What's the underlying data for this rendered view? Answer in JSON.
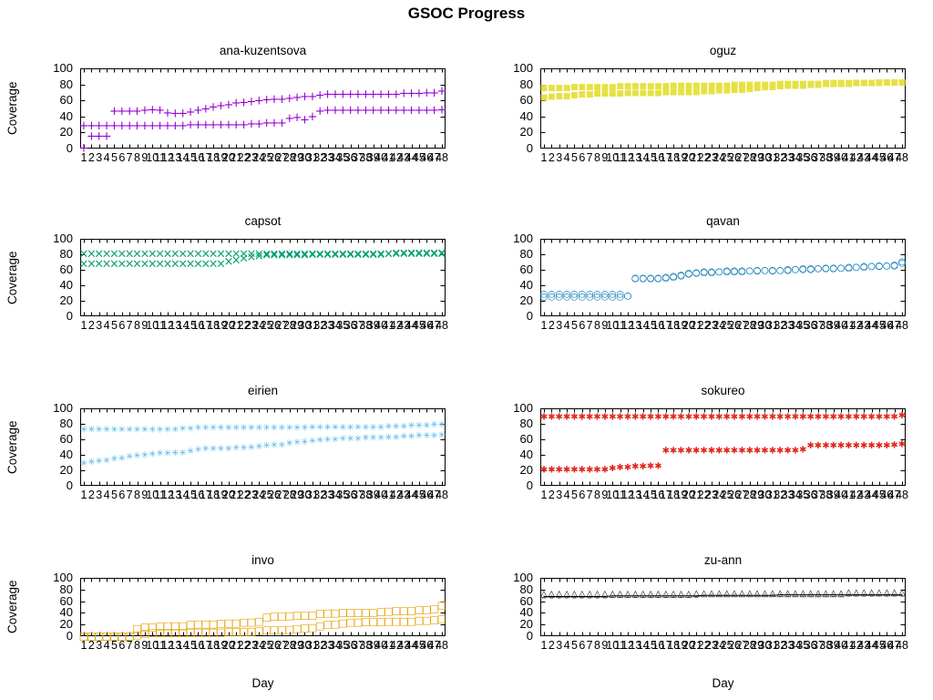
{
  "page": {
    "title": "GSOC Progress"
  },
  "axis": {
    "ylabel": "Coverage",
    "xlabel": "Day",
    "ylim": [
      0,
      100
    ],
    "y_ticks": [
      0,
      20,
      40,
      60,
      80,
      100
    ],
    "x_ticks": [
      1,
      2,
      3,
      4,
      5,
      6,
      7,
      8,
      9,
      10,
      11,
      12,
      13,
      14,
      15,
      16,
      17,
      18,
      19,
      20,
      21,
      22,
      23,
      24,
      25,
      26,
      27,
      28,
      29,
      30,
      31,
      32,
      33,
      34,
      35,
      36,
      37,
      38,
      39,
      40,
      41,
      42,
      43,
      44,
      45,
      46,
      47,
      48
    ],
    "grid": "off",
    "legend": "none"
  },
  "chart_data": [
    {
      "type": "scatter",
      "title": "ana-kuzentsova",
      "color": "#9400d3",
      "marker_name": "plus-marker",
      "series": [
        {
          "name": "series-1",
          "glyph": "+",
          "size": 13,
          "values": [
            0,
            15,
            15,
            15,
            46,
            46,
            46,
            46,
            47,
            48,
            47,
            44,
            43,
            43,
            45,
            47,
            49,
            51,
            53,
            54,
            56,
            57,
            58,
            59,
            60,
            61,
            61,
            62,
            63,
            64,
            64,
            66,
            67,
            67,
            67,
            67,
            67,
            67,
            67,
            67,
            67,
            67,
            68,
            68,
            68,
            69,
            69,
            71
          ]
        },
        {
          "name": "series-2",
          "glyph": "+",
          "size": 13,
          "values": [
            28,
            28,
            28,
            28,
            28,
            28,
            28,
            28,
            28,
            28,
            28,
            28,
            28,
            28,
            29,
            29,
            29,
            29,
            29,
            29,
            29,
            29,
            30,
            30,
            31,
            31,
            31,
            37,
            38,
            35,
            39,
            46,
            47,
            47,
            47,
            47,
            47,
            47,
            47,
            47,
            47,
            47,
            47,
            47,
            47,
            47,
            47,
            48
          ]
        }
      ]
    },
    {
      "type": "scatter",
      "title": "oguz",
      "color": "#e6e143",
      "marker_name": "filled-square-marker",
      "series": [
        {
          "name": "series-1",
          "glyph": "■",
          "size": 9,
          "values": [
            75,
            75,
            75,
            75,
            76,
            76,
            76,
            76,
            76,
            76,
            77,
            77,
            77,
            77,
            77,
            77,
            77,
            78,
            78,
            78,
            78,
            78,
            78,
            78,
            78,
            79,
            79,
            79,
            79,
            79,
            79,
            80,
            80,
            80,
            80,
            80,
            80,
            81,
            81,
            81,
            81,
            81,
            81,
            81,
            82,
            82,
            82,
            82
          ]
        },
        {
          "name": "series-2",
          "glyph": "■",
          "size": 9,
          "values": [
            63,
            64,
            65,
            65,
            66,
            67,
            67,
            68,
            68,
            68,
            68,
            69,
            69,
            69,
            69,
            69,
            70,
            70,
            70,
            70,
            70,
            71,
            71,
            72,
            72,
            73,
            73,
            74,
            75,
            76,
            76,
            77,
            78,
            78,
            78,
            79,
            79,
            80,
            80,
            80,
            80,
            81,
            81,
            81,
            81,
            82,
            82,
            82
          ]
        }
      ]
    },
    {
      "type": "scatter",
      "title": "capsot",
      "color": "#009e73",
      "marker_name": "times-marker",
      "series": [
        {
          "name": "series-1",
          "glyph": "×",
          "size": 13,
          "values": [
            80,
            80,
            80,
            80,
            80,
            80,
            80,
            80,
            80,
            80,
            80,
            80,
            80,
            80,
            80,
            80,
            80,
            80,
            80,
            80,
            80,
            80,
            80,
            80,
            80,
            80,
            80,
            80,
            80,
            80,
            80,
            80,
            80,
            80,
            80,
            80,
            80,
            80,
            80,
            80,
            80,
            81,
            81,
            81,
            81,
            81,
            81,
            81
          ]
        },
        {
          "name": "series-2",
          "glyph": "×",
          "size": 13,
          "values": [
            67,
            67,
            67,
            67,
            67,
            67,
            67,
            67,
            67,
            67,
            67,
            67,
            67,
            67,
            67,
            67,
            67,
            67,
            67,
            70,
            72,
            74,
            76,
            77,
            78,
            78,
            78,
            78,
            78,
            78,
            79,
            79,
            79,
            79,
            79,
            79,
            79,
            79,
            79,
            79,
            80,
            80,
            80,
            80,
            80,
            80,
            80,
            80
          ]
        }
      ]
    },
    {
      "type": "scatter",
      "title": "qavan",
      "color": "#0072b2",
      "marker_name": "circle-marker",
      "series": [
        {
          "name": "series-1",
          "glyph": "○",
          "size": 10,
          "values": [
            25,
            25,
            25,
            25,
            25,
            25,
            25,
            25,
            25,
            25,
            25,
            26,
            48,
            48,
            48,
            48,
            49,
            50,
            52,
            54,
            55,
            56,
            56,
            57,
            57,
            57,
            57,
            58,
            58,
            59,
            58,
            59,
            59,
            60,
            60,
            60,
            61,
            61,
            61,
            62,
            62,
            63,
            63,
            64,
            64,
            65,
            65,
            68
          ]
        },
        {
          "name": "series-2",
          "glyph": "○",
          "size": 10,
          "values": [
            28,
            28,
            28,
            28,
            28,
            28,
            28,
            28,
            28,
            28,
            28,
            26,
            49,
            49,
            49,
            49,
            50,
            51,
            53,
            55,
            56,
            57,
            57,
            57,
            58,
            58,
            58,
            58,
            59,
            59,
            59,
            59,
            60,
            60,
            61,
            61,
            61,
            62,
            62,
            62,
            63,
            63,
            64,
            64,
            65,
            65,
            66,
            70
          ]
        }
      ]
    },
    {
      "type": "scatter",
      "title": "eirien",
      "color": "#56b4e9",
      "marker_name": "asterisk-marker",
      "series": [
        {
          "name": "series-1",
          "glyph": "✳",
          "size": 10,
          "values": [
            72,
            72,
            72,
            72,
            72,
            72,
            72,
            72,
            72,
            72,
            72,
            72,
            72,
            73,
            73,
            74,
            74,
            74,
            74,
            74,
            74,
            74,
            74,
            74,
            74,
            74,
            74,
            74,
            74,
            74,
            75,
            75,
            75,
            75,
            75,
            75,
            75,
            75,
            75,
            75,
            76,
            76,
            76,
            77,
            77,
            77,
            78,
            78
          ]
        },
        {
          "name": "series-2",
          "glyph": "✳",
          "size": 10,
          "values": [
            28,
            30,
            31,
            32,
            34,
            35,
            37,
            38,
            39,
            40,
            41,
            41,
            42,
            42,
            44,
            46,
            47,
            47,
            47,
            47,
            48,
            48,
            49,
            50,
            51,
            52,
            52,
            54,
            55,
            56,
            57,
            58,
            59,
            59,
            60,
            60,
            60,
            61,
            61,
            61,
            62,
            62,
            63,
            63,
            64,
            64,
            64,
            65
          ]
        }
      ]
    },
    {
      "type": "scatter",
      "title": "sokureo",
      "color": "#e0261c",
      "marker_name": "heavy-asterisk-marker",
      "series": [
        {
          "name": "series-1",
          "glyph": "✱",
          "size": 10,
          "values": [
            88,
            88,
            88,
            88,
            88,
            88,
            88,
            88,
            88,
            88,
            88,
            88,
            88,
            88,
            88,
            88,
            88,
            88,
            88,
            88,
            88,
            88,
            88,
            88,
            88,
            88,
            88,
            88,
            88,
            88,
            88,
            88,
            88,
            88,
            88,
            88,
            88,
            88,
            88,
            88,
            88,
            88,
            88,
            88,
            88,
            88,
            88,
            90
          ]
        },
        {
          "name": "series-2",
          "glyph": "✱",
          "size": 10,
          "values": [
            20,
            20,
            20,
            20,
            20,
            20,
            20,
            20,
            20,
            22,
            23,
            23,
            24,
            24,
            25,
            25,
            45,
            45,
            45,
            45,
            45,
            45,
            45,
            45,
            45,
            45,
            45,
            45,
            45,
            45,
            45,
            45,
            45,
            45,
            46,
            51,
            51,
            51,
            51,
            51,
            51,
            51,
            51,
            51,
            51,
            51,
            52,
            53
          ]
        }
      ]
    },
    {
      "type": "scatter",
      "title": "invo",
      "color": "#e69f00",
      "marker_name": "open-square-marker",
      "series": [
        {
          "name": "series-1",
          "glyph": "□",
          "size": 11,
          "values": [
            0,
            0,
            0,
            0,
            0,
            0,
            0,
            13,
            16,
            16,
            17,
            18,
            18,
            18,
            20,
            21,
            21,
            21,
            22,
            23,
            23,
            24,
            24,
            26,
            33,
            34,
            34,
            35,
            36,
            36,
            36,
            39,
            40,
            40,
            41,
            41,
            41,
            41,
            41,
            42,
            43,
            44,
            44,
            44,
            45,
            45,
            47,
            53
          ]
        },
        {
          "name": "series-2",
          "glyph": "□",
          "size": 11,
          "values": [
            0,
            0,
            0,
            0,
            0,
            0,
            0,
            2,
            5,
            6,
            6,
            6,
            6,
            6,
            7,
            7,
            7,
            7,
            7,
            8,
            8,
            8,
            8,
            9,
            11,
            11,
            11,
            12,
            13,
            14,
            15,
            18,
            20,
            21,
            23,
            24,
            24,
            25,
            25,
            25,
            26,
            26,
            26,
            26,
            27,
            27,
            28,
            30
          ]
        }
      ]
    },
    {
      "type": "scatter",
      "title": "zu-ann",
      "color": "#000000",
      "marker_name": "triangle-marker",
      "series": [
        {
          "name": "series-1",
          "glyph": "△",
          "size": 10,
          "values": [
            72,
            72,
            72,
            72,
            72,
            72,
            72,
            72,
            72,
            72,
            72,
            72,
            72,
            72,
            72,
            72,
            72,
            72,
            72,
            72,
            73,
            73,
            73,
            73,
            73,
            73,
            73,
            73,
            73,
            73,
            73,
            73,
            73,
            73,
            73,
            73,
            73,
            73,
            73,
            73,
            74,
            74,
            74,
            74,
            74,
            74,
            74,
            74
          ]
        },
        {
          "name": "series-2",
          "glyph": "▵",
          "size": 7,
          "line": true,
          "values": [
            68,
            68,
            68,
            68,
            68,
            68,
            68,
            68,
            68,
            69,
            69,
            69,
            69,
            69,
            69,
            69,
            69,
            69,
            69,
            69,
            69,
            70,
            70,
            70,
            70,
            70,
            70,
            70,
            70,
            70,
            70,
            71,
            71,
            71,
            71,
            71,
            71,
            71,
            71,
            71,
            71,
            71,
            71,
            71,
            71,
            71,
            71,
            71
          ]
        }
      ]
    }
  ]
}
